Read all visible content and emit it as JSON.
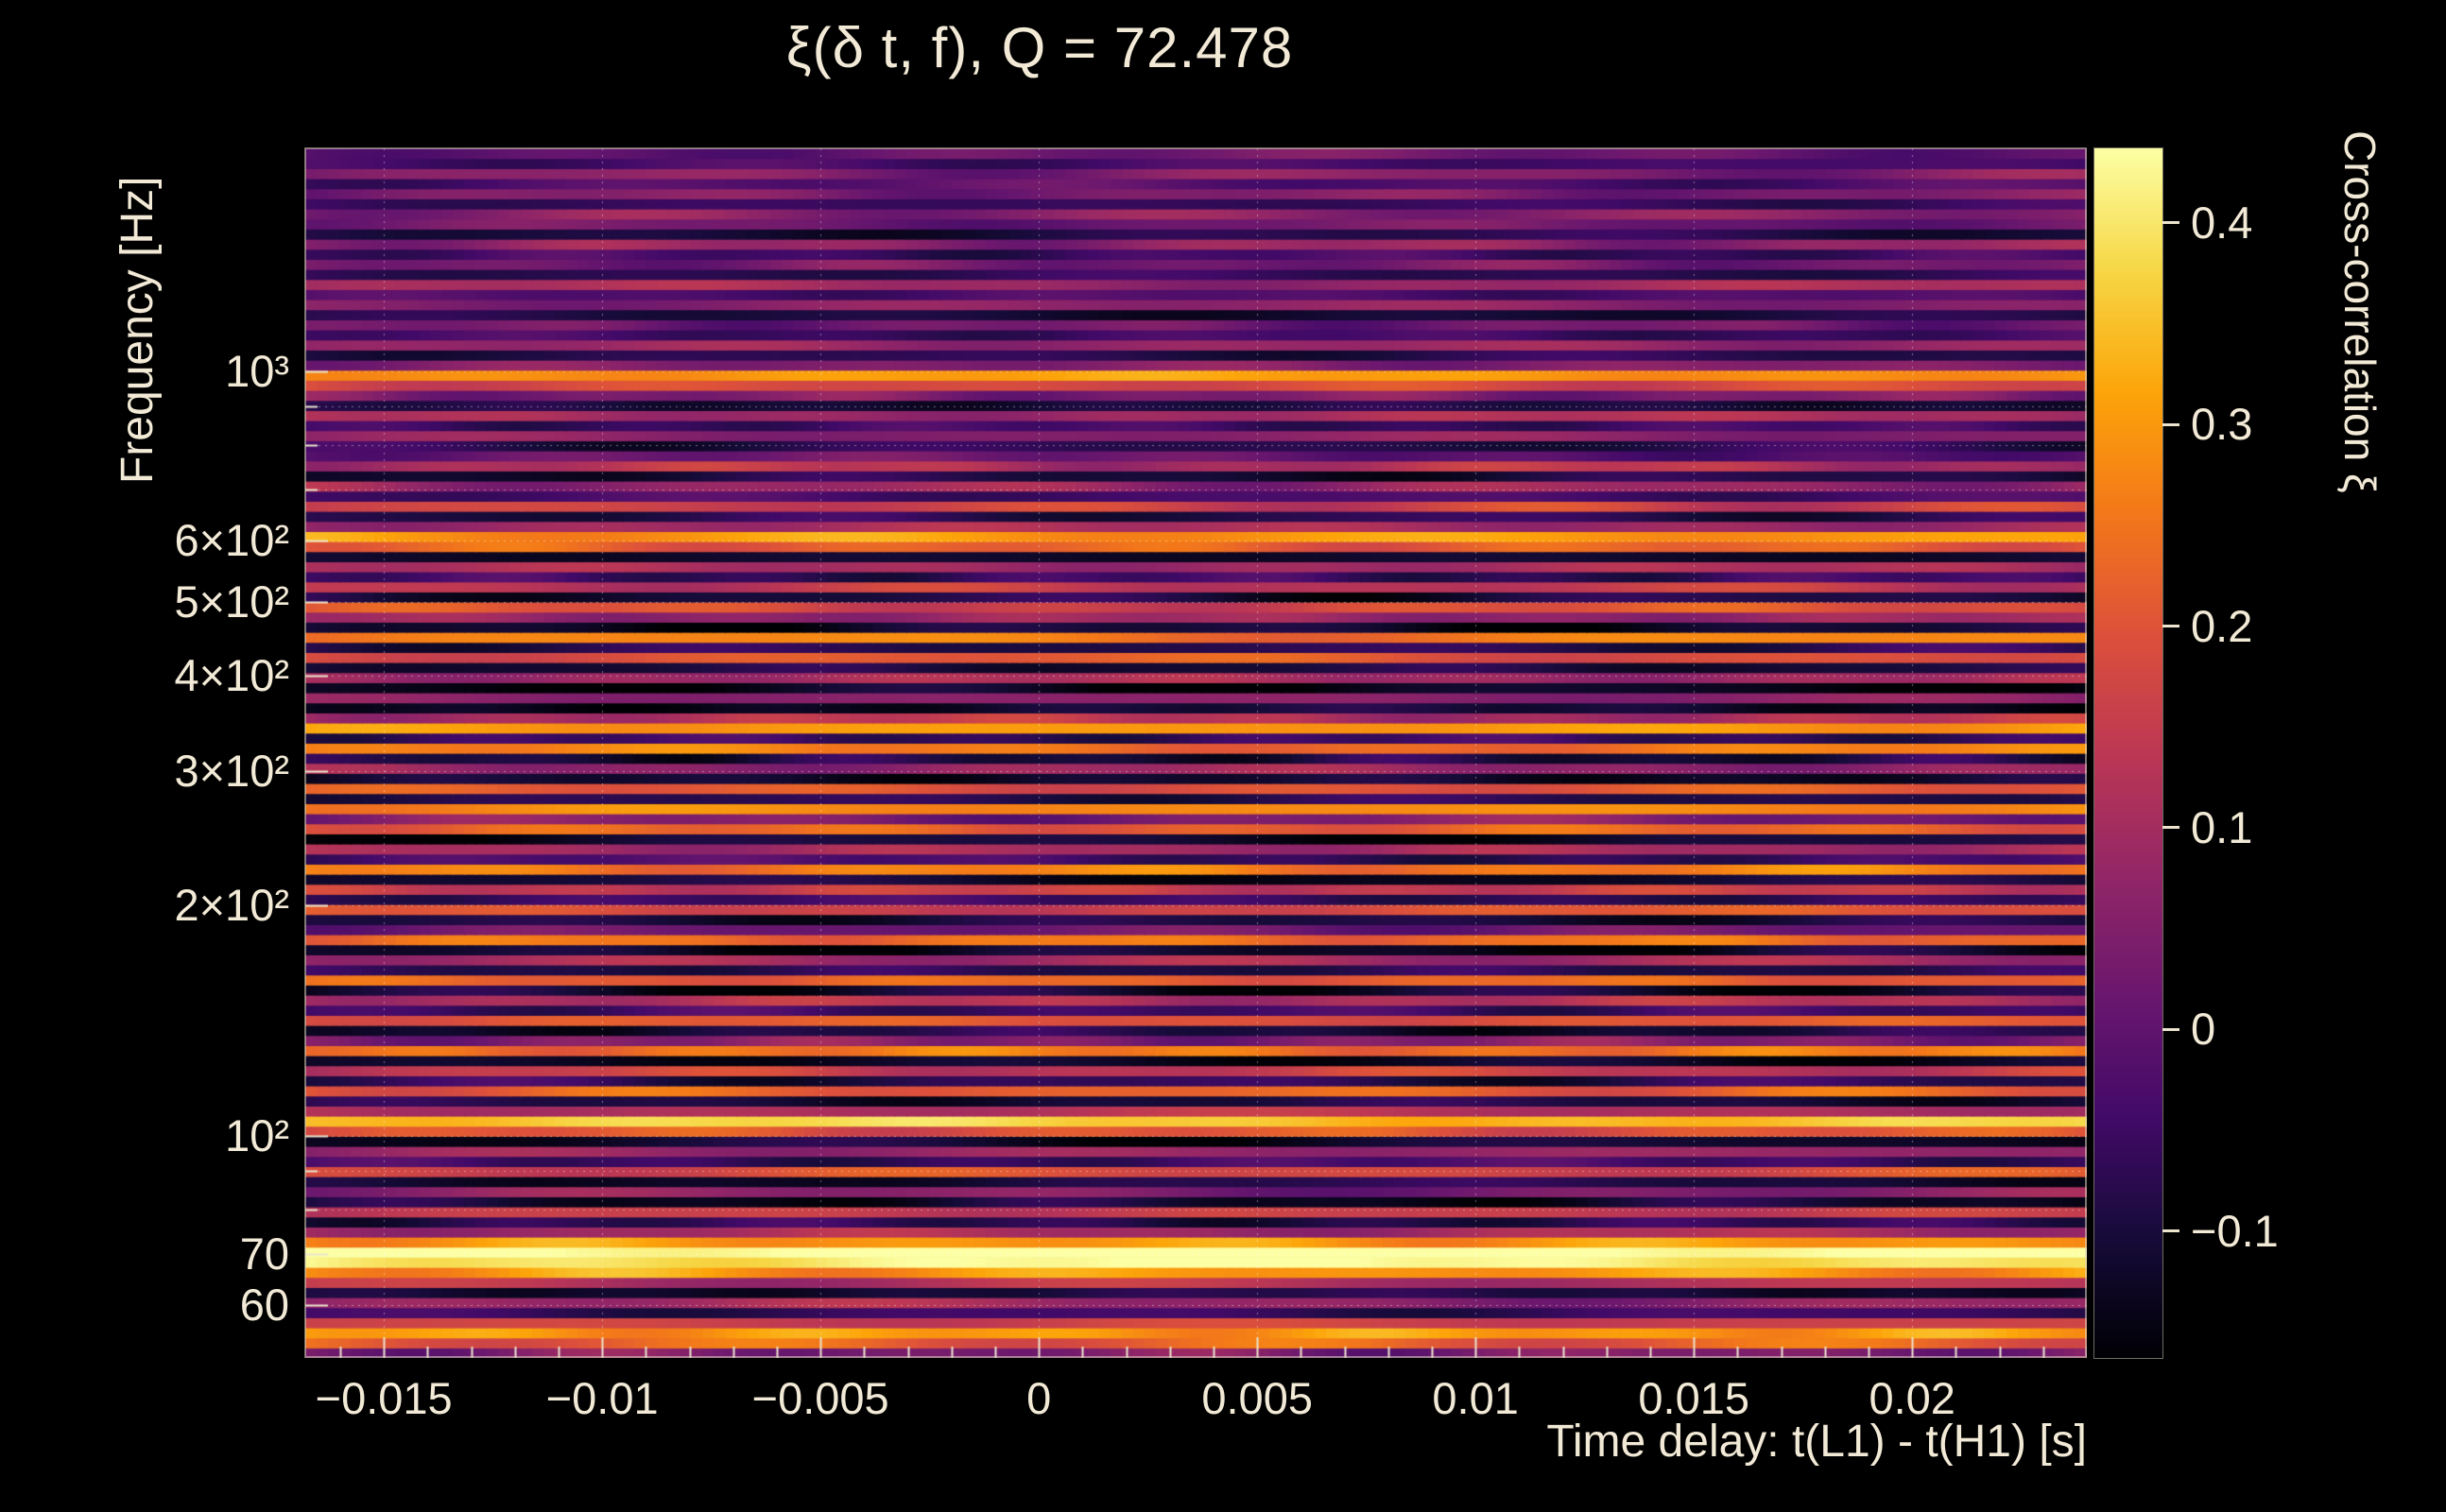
{
  "chart_data": {
    "type": "heatmap",
    "title": "ξ(δ t, f), Q = 72.478",
    "xlabel": "Time delay: t(L1) - t(H1) [s]",
    "ylabel": "Frequency [Hz]",
    "colorbar_label": "Cross-correlation ξ",
    "x_range": [
      -0.0168,
      0.024
    ],
    "y_range_hz": [
      51.2,
      1958
    ],
    "y_scale": "log",
    "value_range": [
      -0.163,
      0.437
    ],
    "grid": true,
    "legend_position": "right-colorbar",
    "x_ticks": [
      {
        "value": -0.015,
        "label": "−0.015"
      },
      {
        "value": -0.01,
        "label": "−0.01"
      },
      {
        "value": -0.005,
        "label": "−0.005"
      },
      {
        "value": 0,
        "label": "0"
      },
      {
        "value": 0.005,
        "label": "0.005"
      },
      {
        "value": 0.01,
        "label": "0.01"
      },
      {
        "value": 0.015,
        "label": "0.015"
      },
      {
        "value": 0.02,
        "label": "0.02"
      }
    ],
    "x_minor_step": 0.001,
    "y_ticks": [
      {
        "value": 1000,
        "label": "10³"
      },
      {
        "value": 600,
        "label": "6×10²"
      },
      {
        "value": 500,
        "label": "5×10²"
      },
      {
        "value": 400,
        "label": "4×10²"
      },
      {
        "value": 300,
        "label": "3×10²"
      },
      {
        "value": 200,
        "label": "2×10²"
      },
      {
        "value": 100,
        "label": "10²"
      },
      {
        "value": 70,
        "label": "70"
      },
      {
        "value": 60,
        "label": "60"
      }
    ],
    "y_minor_ticks": [
      60,
      70,
      80,
      90,
      100,
      200,
      300,
      400,
      500,
      600,
      700,
      800,
      900,
      1000
    ],
    "colorbar_ticks": [
      {
        "value": 0.4,
        "label": "0.4"
      },
      {
        "value": 0.3,
        "label": "0.3"
      },
      {
        "value": 0.2,
        "label": "0.2"
      },
      {
        "value": 0.1,
        "label": "0.1"
      },
      {
        "value": 0,
        "label": "0"
      },
      {
        "value": -0.1,
        "label": "−0.1"
      }
    ],
    "colormap": "inferno",
    "colormap_stops": [
      [
        0,
        0,
        4
      ],
      [
        22,
        11,
        57
      ],
      [
        66,
        10,
        104
      ],
      [
        106,
        23,
        110
      ],
      [
        147,
        38,
        103
      ],
      [
        188,
        55,
        84
      ],
      [
        221,
        81,
        58
      ],
      [
        243,
        120,
        25
      ],
      [
        252,
        165,
        10
      ],
      [
        246,
        215,
        70
      ],
      [
        252,
        255,
        164
      ]
    ],
    "noise_seed": 7,
    "bands": {
      "f_min": 51.2,
      "f_max": 1958,
      "description": "cross-correlation value per log-spaced frequency band, bottom to top",
      "values": [
        0.04,
        0.22,
        0.3,
        0.16,
        -0.06,
        0.08,
        -0.1,
        0.12,
        0.3,
        0.42,
        0.46,
        0.3,
        0.1,
        -0.08,
        0.15,
        -0.12,
        0.05,
        -0.1,
        0.18,
        -0.05,
        0.08,
        -0.12,
        0.2,
        0.36,
        0.12,
        -0.1,
        0.22,
        -0.08,
        0.15,
        -0.13,
        0.25,
        0.05,
        -0.1,
        0.2,
        -0.05,
        0.12,
        -0.12,
        0.22,
        -0.08,
        0.1,
        -0.13,
        0.24,
        0.02,
        -0.1,
        0.18,
        -0.06,
        0.15,
        -0.12,
        0.26,
        -0.05,
        0.1,
        -0.12,
        0.22,
        0.04,
        0.28,
        -0.08,
        0.2,
        -0.12,
        0.08,
        -0.1,
        0.25,
        -0.06,
        0.3,
        0.12,
        -0.12,
        0.06,
        -0.14,
        0.1,
        -0.1,
        0.2,
        -0.08,
        0.26,
        -0.12,
        0.08,
        0.18,
        -0.1,
        0.14,
        -0.06,
        0.1,
        -0.12,
        0.22,
        0.3,
        0.1,
        -0.08,
        0.16,
        -0.04,
        0.08,
        -0.1,
        0.12,
        0.0,
        -0.08,
        0.06,
        -0.05,
        0.1,
        -0.1,
        0.04,
        0.18,
        0.3,
        0.05,
        -0.08,
        0.08,
        -0.05,
        0.02,
        -0.1,
        0.06,
        -0.03,
        0.09,
        -0.07,
        0.03,
        -0.05,
        0.07,
        -0.09,
        0.02,
        0.06,
        -0.06,
        0.04,
        -0.02,
        0.05,
        -0.04,
        0.01
      ]
    }
  },
  "colors": {
    "background": "#000000",
    "text": "#f2ead6",
    "tick": "#ece4cc",
    "grid": "#ffffff"
  }
}
